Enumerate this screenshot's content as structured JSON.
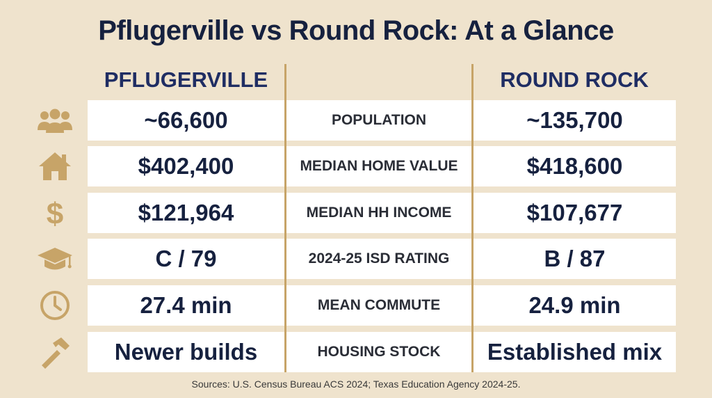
{
  "title": "Pflugerville vs Round Rock: At a Glance",
  "columns": {
    "left": "PFLUGERVILLE",
    "right": "ROUND ROCK"
  },
  "rows": [
    {
      "icon": "people-icon",
      "label": "POPULATION",
      "left": "~66,600",
      "right": "~135,700"
    },
    {
      "icon": "house-icon",
      "label": "MEDIAN HOME VALUE",
      "left": "$402,400",
      "right": "$418,600"
    },
    {
      "icon": "dollar-icon",
      "label": "MEDIAN HH INCOME",
      "left": "$121,964",
      "right": "$107,677"
    },
    {
      "icon": "graduation-cap-icon",
      "label": "2024-25 ISD RATING",
      "left": "C / 79",
      "right": "B / 87"
    },
    {
      "icon": "clock-icon",
      "label": "MEAN COMMUTE",
      "left": "27.4 min",
      "right": "24.9 min"
    },
    {
      "icon": "hammer-icon",
      "label": "HOUSING STOCK",
      "left": "Newer builds",
      "right": "Established mix"
    }
  ],
  "sources": "Sources: U.S. Census Bureau ACS 2024; Texas Education Agency 2024-25.",
  "colors": {
    "accent": "#c7a468",
    "navy": "#1f2d63",
    "background": "#efe3cd"
  }
}
